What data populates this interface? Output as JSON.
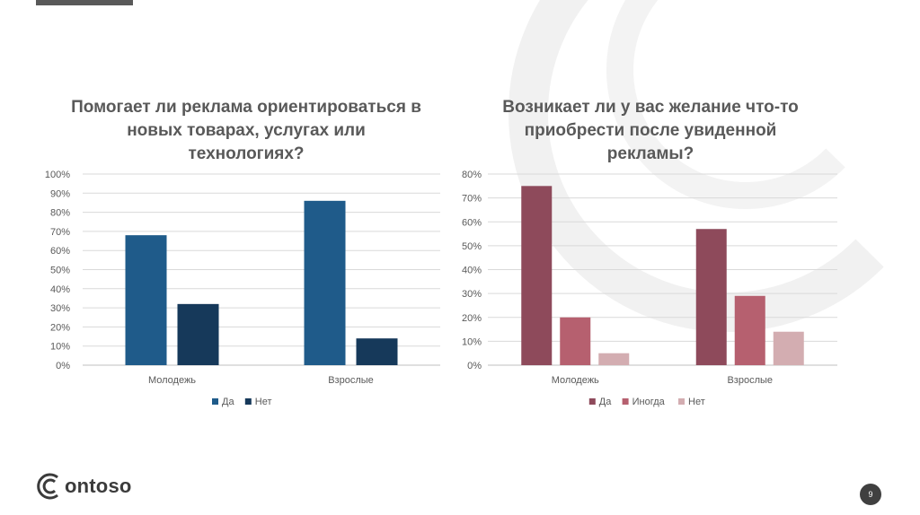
{
  "slide": {
    "page_number": "9",
    "logo_text": "ontoso",
    "accent_color": "#595959"
  },
  "chart_data": [
    {
      "type": "bar",
      "title": "Помогает ли реклама ориентироваться в новых товарах, услугах или технологиях?",
      "title_lines": [
        "Помогает ли реклама ориентироваться в",
        "новых товарах, услугах или",
        "технологиях?"
      ],
      "categories": [
        "Молодежь",
        "Взрослые"
      ],
      "series": [
        {
          "name": "Да",
          "values": [
            68,
            86
          ],
          "color": "#1f5b8a"
        },
        {
          "name": "Нет",
          "values": [
            32,
            14
          ],
          "color": "#16395a"
        }
      ],
      "ylim": [
        0,
        100
      ],
      "yticks": [
        0,
        10,
        20,
        30,
        40,
        50,
        60,
        70,
        80,
        90,
        100
      ],
      "y_unit": "%",
      "grid": true,
      "legend_position": "bottom"
    },
    {
      "type": "bar",
      "title": "Возникает ли у вас желание что-то приобрести после увиденной рекламы?",
      "title_lines": [
        "Возникает ли у вас желание что-то",
        "приобрести после увиденной",
        "рекламы?"
      ],
      "categories": [
        "Молодежь",
        "Взрослые"
      ],
      "series": [
        {
          "name": "Да",
          "values": [
            75,
            57
          ],
          "color": "#8e4a5b"
        },
        {
          "name": "Иногда",
          "values": [
            20,
            29
          ],
          "color": "#b6606f"
        },
        {
          "name": "Нет",
          "values": [
            5,
            14
          ],
          "color": "#d3adb1"
        }
      ],
      "ylim": [
        0,
        80
      ],
      "yticks": [
        0,
        10,
        20,
        30,
        40,
        50,
        60,
        70,
        80
      ],
      "y_unit": "%",
      "grid": true,
      "legend_position": "bottom"
    }
  ]
}
